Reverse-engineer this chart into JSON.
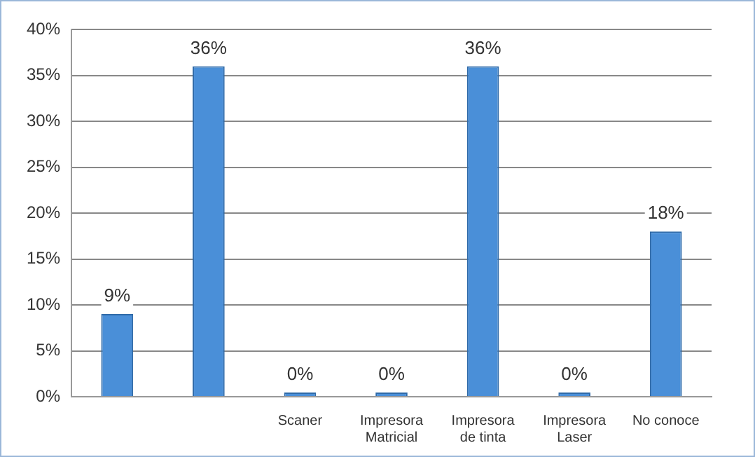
{
  "chart_data": {
    "type": "bar",
    "categories": [
      null,
      null,
      "Scaner",
      "Impresora Matricial",
      "Impresora de tinta",
      "Impresora Laser",
      "No conoce"
    ],
    "values": [
      9,
      36,
      0,
      0,
      36,
      0,
      18
    ],
    "value_labels": [
      "9%",
      "36%",
      "0%",
      "0%",
      "36%",
      "0%",
      "18%"
    ],
    "color": "#4a8fd8",
    "ylim": [
      0,
      40
    ],
    "yticks": [
      {
        "value": 0,
        "label": "0%"
      },
      {
        "value": 5,
        "label": "5%"
      },
      {
        "value": 10,
        "label": "10%"
      },
      {
        "value": 15,
        "label": "15%"
      },
      {
        "value": 20,
        "label": "20%"
      },
      {
        "value": 25,
        "label": "25%"
      },
      {
        "value": 30,
        "label": "30%"
      },
      {
        "value": 35,
        "label": "35%"
      },
      {
        "value": 40,
        "label": "40%"
      }
    ],
    "grid": "y",
    "legend": false
  }
}
